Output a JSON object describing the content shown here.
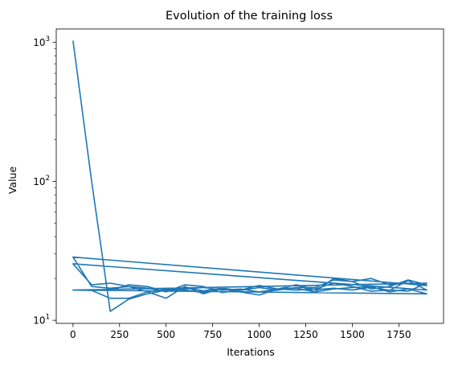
{
  "chart_data": {
    "type": "line",
    "title": "Evolution of the training loss",
    "xlabel": "Iterations",
    "ylabel": "Value",
    "xlim": [
      -90,
      1990
    ],
    "ylim": [
      9.5,
      1250
    ],
    "yscale": "log",
    "grid": false,
    "line_color": "#1f77b4",
    "x_ticks": [
      {
        "value": 0,
        "label": "0"
      },
      {
        "value": 250,
        "label": "250"
      },
      {
        "value": 500,
        "label": "500"
      },
      {
        "value": 750,
        "label": "750"
      },
      {
        "value": 1000,
        "label": "1000"
      },
      {
        "value": 1250,
        "label": "1250"
      },
      {
        "value": 1500,
        "label": "1500"
      },
      {
        "value": 1750,
        "label": "1750"
      }
    ],
    "y_ticks": [
      {
        "value": 10,
        "base": "10",
        "exp": "1"
      },
      {
        "value": 100,
        "base": "10",
        "exp": "2"
      },
      {
        "value": 1000,
        "base": "10",
        "exp": "3"
      }
    ],
    "series": [
      {
        "x": [
          0,
          100,
          200,
          300,
          400,
          500,
          600,
          700,
          800,
          900,
          1000,
          1100,
          1200,
          1300,
          1400,
          1500,
          1600,
          1700,
          1800,
          1900,
          0,
          100,
          200,
          300,
          400,
          500,
          600,
          700,
          800,
          900,
          1000,
          1100,
          1200,
          1300,
          1400,
          1500,
          1600,
          1700,
          1800,
          1900,
          0,
          100,
          200,
          300,
          400,
          500,
          600,
          700,
          800,
          900,
          1000,
          1100,
          1200,
          1300,
          1400,
          1500,
          1600,
          1700,
          1800,
          1900,
          0,
          100,
          200,
          300,
          400,
          500,
          600,
          700,
          800,
          900,
          1000,
          1100,
          1200,
          1300,
          1400,
          1500,
          1600,
          1700,
          1800,
          1900,
          0,
          100,
          200,
          300,
          400,
          500,
          600,
          700,
          800,
          900,
          1000,
          1100,
          1200,
          1300,
          1400,
          1500,
          1600,
          1700,
          1800,
          1900
        ],
        "y": [
          1030,
          100,
          11.6,
          14.2,
          15.5,
          16.5,
          17.2,
          16.3,
          17.0,
          16.4,
          17.2,
          16.5,
          18.0,
          16.6,
          17.0,
          16.5,
          17.3,
          16.4,
          19.3,
          16.5,
          25.5,
          18.0,
          18.5,
          17.5,
          17.0,
          16.2,
          16.8,
          17.2,
          16.5,
          16.8,
          16.0,
          16.8,
          16.5,
          16.8,
          18.5,
          17.5,
          16.2,
          16.5,
          16.2,
          18.5,
          16.5,
          16.5,
          16.5,
          18.0,
          17.5,
          16.0,
          18.0,
          17.5,
          15.8,
          16.5,
          17.8,
          16.8,
          18.0,
          16.0,
          16.8,
          17.2,
          17.5,
          16.0,
          16.8,
          15.5,
          16.5,
          16.4,
          14.4,
          14.4,
          16.0,
          14.4,
          17.5,
          15.5,
          17.0,
          16.0,
          16.0,
          16.5,
          17.2,
          17.2,
          19.5,
          19.0,
          20.0,
          18.0,
          18.5,
          17.8,
          28.5,
          17.5,
          17.0,
          17.5,
          16.0,
          16.8,
          16.5,
          15.8,
          16.8,
          16.0,
          15.2,
          16.8,
          17.0,
          16.0,
          20.0,
          19.0,
          16.8,
          17.5,
          19.5,
          18.0
        ]
      }
    ]
  }
}
